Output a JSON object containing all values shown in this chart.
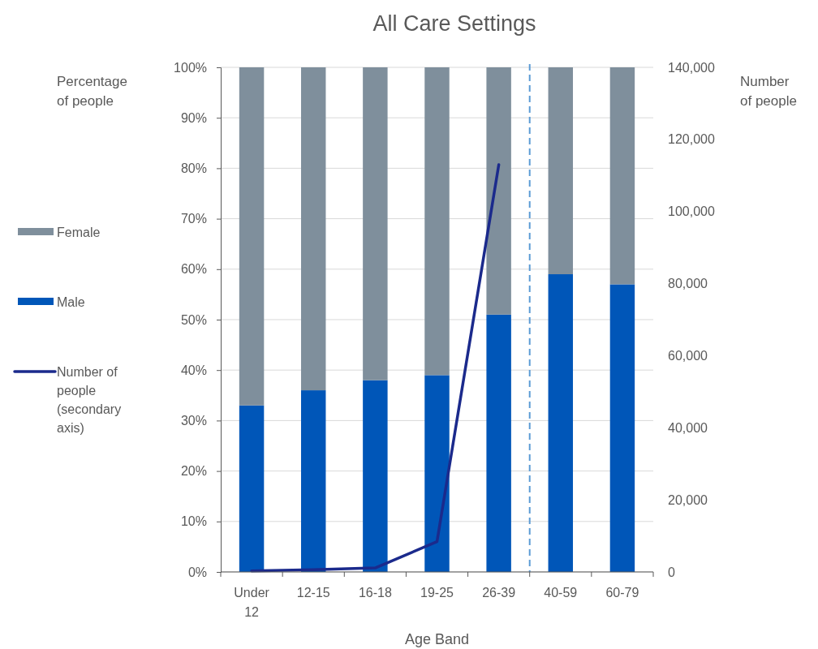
{
  "chart_data": {
    "type": "bar",
    "title": "All Care Settings",
    "xlabel": "Age Band",
    "ylabel": "Percentage of people",
    "y2label": "Number of people",
    "categories": [
      "Under 12",
      "12-15",
      "16-18",
      "19-25",
      "26-39",
      "40-59",
      "60-79"
    ],
    "stacked": true,
    "series": [
      {
        "name": "Male",
        "color": "#0056b8",
        "values": [
          33,
          36,
          38,
          39,
          51,
          59,
          57
        ]
      },
      {
        "name": "Female",
        "color": "#7f8f9c",
        "values": [
          67,
          64,
          62,
          61,
          49,
          41,
          43
        ]
      },
      {
        "name": "Number of people (secondary axis)",
        "type": "line",
        "axis": "y2",
        "color": "#1b2a8c",
        "values": [
          300,
          600,
          1100,
          8400,
          113000,
          null,
          null
        ]
      }
    ],
    "ylim": [
      0,
      100
    ],
    "yticks": [
      {
        "value": 0,
        "label": "0%"
      },
      {
        "value": 10,
        "label": "10%"
      },
      {
        "value": 20,
        "label": "20%"
      },
      {
        "value": 30,
        "label": "30%"
      },
      {
        "value": 40,
        "label": "40%"
      },
      {
        "value": 50,
        "label": "50%"
      },
      {
        "value": 60,
        "label": "60%"
      },
      {
        "value": 70,
        "label": "70%"
      },
      {
        "value": 80,
        "label": "80%"
      },
      {
        "value": 90,
        "label": "90%"
      },
      {
        "value": 100,
        "label": "100%"
      }
    ],
    "y2lim": [
      0,
      140000
    ],
    "y2ticks": [
      0,
      {
        "value": 20000,
        "label": "20,000"
      },
      {
        "value": 40000,
        "label": "40,000"
      },
      {
        "value": 60000,
        "label": "60,000"
      },
      {
        "value": 80000,
        "label": "80,000"
      },
      {
        "value": 100000,
        "label": "100,000"
      },
      {
        "value": 120000,
        "label": "120,000"
      },
      {
        "value": 140000,
        "label": "140,000"
      }
    ],
    "grid": "y",
    "legend": "left",
    "line_style": "solid"
  }
}
